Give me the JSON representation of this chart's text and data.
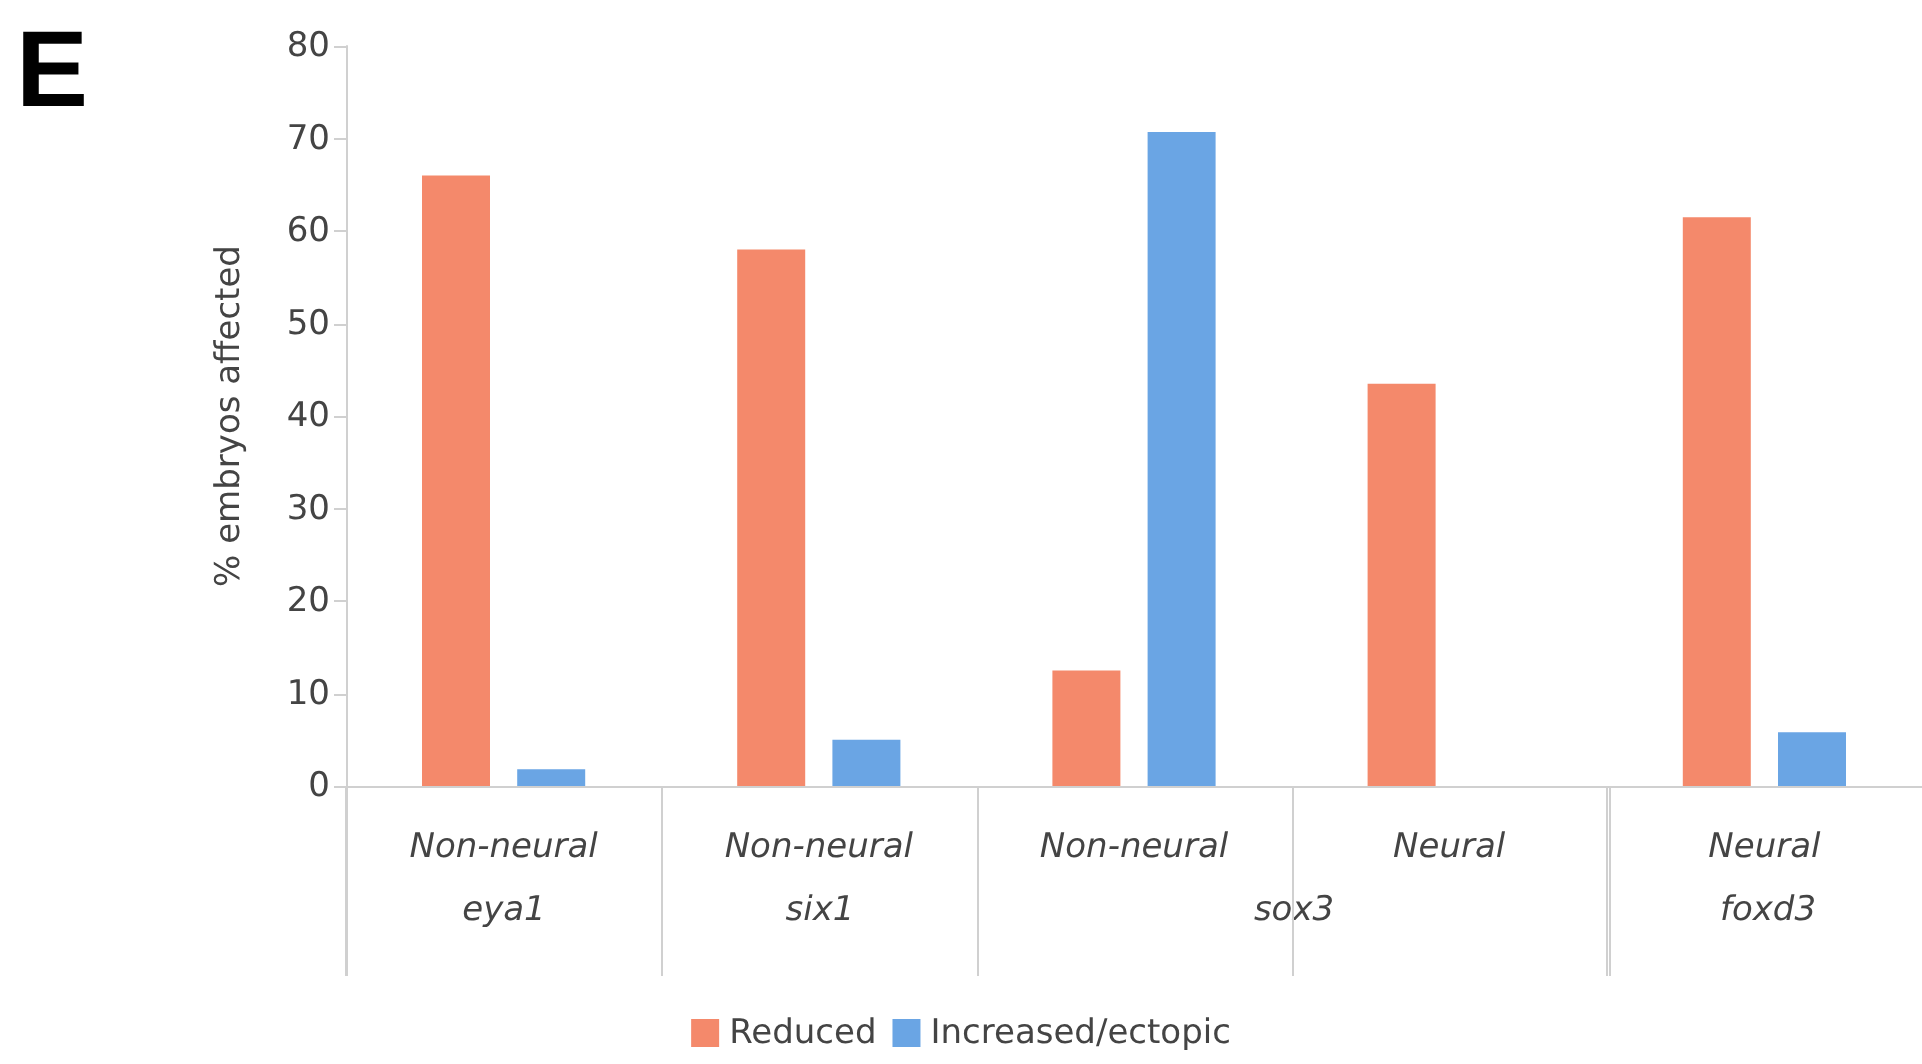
{
  "chart_data": {
    "type": "bar",
    "ylabel": "% embryos affected",
    "categories": [
      "Non-neural",
      "Non-neural",
      "Non-neural",
      "Neural",
      "Neural"
    ],
    "series": [
      {
        "name": "Reduced",
        "color": "#f4896b",
        "values": [
          66,
          58,
          12.5,
          43.5,
          61.5
        ]
      },
      {
        "name": "Increased/ectopic",
        "color": "#6aa5e4",
        "values": [
          1.8,
          5,
          70.7,
          null,
          5.8
        ]
      }
    ],
    "annotations": [
      "E",
      "eya1",
      "six1",
      "sox3",
      "foxd3"
    ],
    "ylim": [
      0,
      80
    ],
    "yticks": [
      0,
      10,
      20,
      30,
      40,
      50,
      60,
      70,
      80
    ],
    "grid": false,
    "legend": "bottom"
  }
}
